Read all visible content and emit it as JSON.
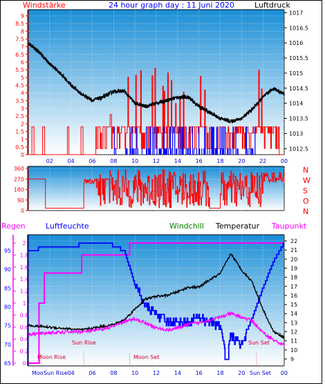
{
  "title": "24 hour graph day : 11 Juni 2020",
  "colors": {
    "red": "#ff0000",
    "blue": "#0000ff",
    "black": "#000000",
    "magenta": "#ff00ff",
    "green": "#008000",
    "bg_top": "#1a8ed6",
    "bg_bottom": "#ffffff"
  },
  "chart_data": [
    {
      "type": "line",
      "name": "wind-pressure",
      "left_label": "Windstärke",
      "right_label": "Luftdruck",
      "left_ticks": [
        "0",
        "0.5",
        "1",
        "1.5",
        "2",
        "2.5",
        "3",
        "3.5",
        "4",
        "4.5",
        "5",
        "5.5",
        "6",
        "6.5",
        "7",
        "7.5",
        "8",
        "8.5",
        "9"
      ],
      "right_ticks": [
        "1012.5",
        "1013",
        "1013.5",
        "1014",
        "1014.5",
        "1015",
        "1015.5",
        "1016",
        "1016.5",
        "1017"
      ],
      "x_ticks": [
        "02",
        "04",
        "06",
        "08",
        "10",
        "12",
        "14",
        "16",
        "18",
        "20",
        "22",
        "00"
      ],
      "ylim_left": [
        0,
        9.4
      ],
      "ylim_right": [
        1012.3,
        1017.1
      ],
      "pressure": {
        "hours": [
          0,
          1,
          2,
          3,
          4,
          5,
          6,
          7,
          8,
          9,
          10,
          11,
          12,
          13,
          14,
          15,
          16,
          17,
          18,
          19,
          20,
          21,
          22,
          23,
          24
        ],
        "values": [
          1016.0,
          1015.7,
          1015.3,
          1015.0,
          1014.6,
          1014.3,
          1014.1,
          1014.2,
          1014.4,
          1014.4,
          1014.0,
          1013.9,
          1014.0,
          1014.1,
          1014.2,
          1014.2,
          1013.9,
          1013.7,
          1013.5,
          1013.4,
          1013.5,
          1013.8,
          1014.2,
          1014.5,
          1014.3
        ]
      }
    },
    {
      "type": "scatter",
      "name": "wind-direction",
      "left_ticks": [
        "0",
        "90",
        "180",
        "270",
        "360"
      ],
      "right_labels": [
        "N",
        "W",
        "S",
        "O",
        "N"
      ],
      "ylim": [
        0,
        360
      ]
    },
    {
      "type": "line",
      "name": "humidity-temperature",
      "header_labels": {
        "regen": "Regen",
        "luftfeuchte": "Luftfeuchte",
        "windchill": "Windchill",
        "temperatur": "Temperatur",
        "taupunkt": "Taupunkt"
      },
      "rain_ticks": [
        "0",
        "0.2",
        "0.4",
        "0.6",
        "0.8",
        "1",
        "1.2",
        "1.4",
        "1.6",
        "1.8",
        "2"
      ],
      "humidity_ticks": [
        "65",
        "70",
        "75",
        "80",
        "85",
        "90",
        "95"
      ],
      "temp_ticks": [
        "9",
        "10",
        "11",
        "12",
        "13",
        "14",
        "15",
        "16",
        "17",
        "18",
        "19",
        "20",
        "21",
        "22"
      ],
      "x_ticks": [
        "02",
        "04",
        "06",
        "08",
        "10",
        "12",
        "14",
        "16",
        "18",
        "20",
        "22",
        "00"
      ],
      "x_special": [
        "Moo",
        "Sun Rise",
        "Sun Set",
        "Sun Set"
      ],
      "annotations": {
        "moon_rise": "Moon Rise",
        "sun_rise": "Sun Rise",
        "moon_set": "Moon Set",
        "sun_set": "Sun Set"
      },
      "temperature": {
        "hours": [
          0,
          1,
          2,
          3,
          4,
          5,
          6,
          7,
          8,
          9,
          10,
          11,
          12,
          13,
          14,
          15,
          16,
          17,
          18,
          19,
          20,
          21,
          22,
          23,
          24
        ],
        "values": [
          12.7,
          12.6,
          12.5,
          12.4,
          12.3,
          12.2,
          12.4,
          12.6,
          12.8,
          13.3,
          14.5,
          15.6,
          15.9,
          16.0,
          16.4,
          16.9,
          16.9,
          17.7,
          18.4,
          20.6,
          18.8,
          17.5,
          14.5,
          12.0,
          11.4
        ]
      },
      "windchill": {
        "hours": [
          0,
          1,
          2,
          3,
          4,
          5,
          6,
          7,
          8,
          9,
          10,
          11,
          12,
          13,
          14,
          15,
          16,
          17,
          18,
          19,
          20,
          21,
          22,
          23,
          24
        ],
        "values": [
          12.7,
          12.6,
          12.5,
          12.4,
          12.3,
          12.2,
          12.4,
          12.6,
          12.8,
          13.3,
          14.5,
          15.6,
          15.9,
          16.0,
          16.4,
          16.9,
          16.9,
          17.7,
          18.4,
          20.6,
          18.8,
          17.5,
          14.5,
          12.0,
          11.4
        ]
      },
      "dewpoint": {
        "hours": [
          0,
          1,
          2,
          3,
          4,
          5,
          6,
          7,
          8,
          9,
          10,
          11,
          12,
          13,
          14,
          15,
          16,
          17,
          18,
          19,
          20,
          21,
          22,
          23,
          24
        ],
        "values": [
          11.7,
          11.8,
          11.9,
          11.9,
          12.0,
          12.0,
          12.1,
          12.3,
          12.6,
          13.1,
          13.4,
          13.0,
          12.4,
          12.2,
          12.4,
          12.8,
          13.0,
          13.3,
          13.6,
          14.0,
          13.6,
          13.2,
          11.9,
          11.1,
          10.5
        ]
      },
      "humidity": {
        "hours": [
          0,
          0.4,
          1.5,
          4,
          5.5,
          7.5,
          9,
          10,
          11,
          12,
          13,
          14,
          15,
          16,
          17,
          18,
          18.5,
          19,
          20,
          21,
          22,
          23,
          24
        ],
        "values": [
          95,
          95,
          96,
          96,
          97,
          97,
          95,
          86,
          80,
          78,
          76,
          76,
          76,
          77,
          76,
          75,
          68,
          72,
          70,
          77,
          85,
          92,
          97
        ]
      },
      "rain": {
        "hours": [
          0,
          0.7,
          1,
          1.5,
          4,
          5,
          9.5,
          24
        ],
        "values": [
          0,
          0,
          1,
          1.5,
          1.5,
          1.8,
          2,
          2
        ]
      }
    }
  ]
}
